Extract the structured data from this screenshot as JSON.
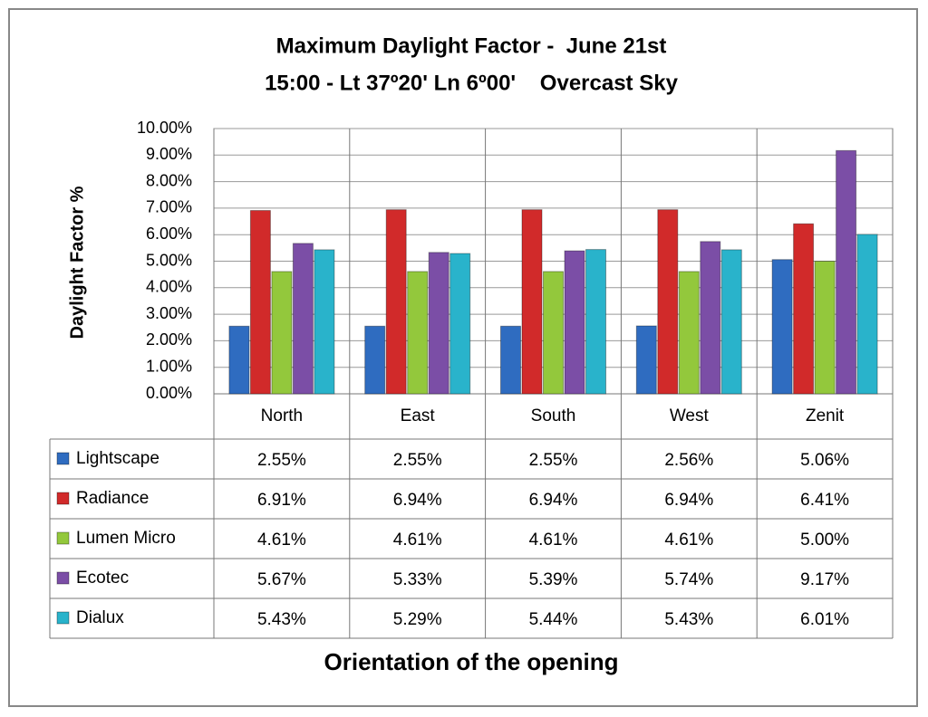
{
  "chart_data": {
    "type": "bar",
    "title": "Maximum Daylight Factor -  June 21st",
    "subtitle": "15:00 - Lt 37º20' Ln 6º00'    Overcast Sky",
    "y_label": "Daylight Factor %",
    "x_label": "Orientation of the opening",
    "categories": [
      "North",
      "East",
      "South",
      "West",
      "Zenit"
    ],
    "series": [
      {
        "name": "Lightscape",
        "color": "#2f6cc0",
        "values": [
          2.55,
          2.55,
          2.55,
          2.56,
          5.06
        ],
        "value_labels": [
          "2.55%",
          "2.55%",
          "2.55%",
          "2.56%",
          "5.06%"
        ]
      },
      {
        "name": "Radiance",
        "color": "#d12a2a",
        "values": [
          6.91,
          6.94,
          6.94,
          6.94,
          6.41
        ],
        "value_labels": [
          "6.91%",
          "6.94%",
          "6.94%",
          "6.94%",
          "6.41%"
        ]
      },
      {
        "name": "Lumen Micro",
        "color": "#93c83c",
        "values": [
          4.61,
          4.61,
          4.61,
          4.61,
          5.0
        ],
        "value_labels": [
          "4.61%",
          "4.61%",
          "4.61%",
          "4.61%",
          "5.00%"
        ]
      },
      {
        "name": "Ecotec",
        "color": "#7b4ea6",
        "values": [
          5.67,
          5.33,
          5.39,
          5.74,
          9.17
        ],
        "value_labels": [
          "5.67%",
          "5.33%",
          "5.39%",
          "5.74%",
          "9.17%"
        ]
      },
      {
        "name": "Dialux",
        "color": "#29b3cb",
        "values": [
          5.43,
          5.29,
          5.44,
          5.43,
          6.01
        ],
        "value_labels": [
          "5.43%",
          "5.29%",
          "5.44%",
          "5.43%",
          "6.01%"
        ]
      }
    ],
    "ylim": [
      0,
      10
    ],
    "yticks": [
      {
        "value": 0,
        "label": "0.00%"
      },
      {
        "value": 1,
        "label": "1.00%"
      },
      {
        "value": 2,
        "label": "2.00%"
      },
      {
        "value": 3,
        "label": "3.00%"
      },
      {
        "value": 4,
        "label": "4.00%"
      },
      {
        "value": 5,
        "label": "5.00%"
      },
      {
        "value": 6,
        "label": "6.00%"
      },
      {
        "value": 7,
        "label": "7.00%"
      },
      {
        "value": 8,
        "label": "8.00%"
      },
      {
        "value": 9,
        "label": "9.00%"
      },
      {
        "value": 10,
        "label": "10.00%"
      }
    ],
    "grid": true
  }
}
